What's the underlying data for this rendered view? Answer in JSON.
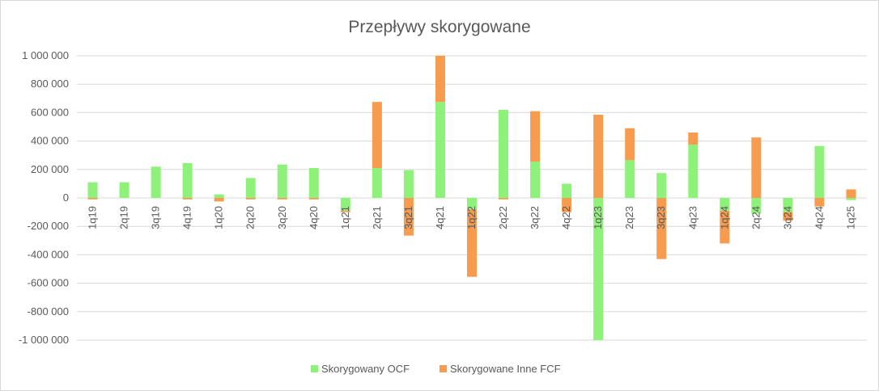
{
  "chart_data": {
    "type": "bar",
    "stacked": true,
    "title": "Przepływy skorygowane",
    "xlabel": "",
    "ylabel": "",
    "ylim": [
      -1000000,
      1000000
    ],
    "ytick_values": [
      -1000000,
      -800000,
      -600000,
      -400000,
      -200000,
      0,
      200000,
      400000,
      600000,
      800000,
      1000000
    ],
    "ytick_labels": [
      "-1 000 000",
      "-800 000",
      "-600 000",
      "-400 000",
      "-200 000",
      "0",
      "200 000",
      "400 000",
      "600 000",
      "800 000",
      "1 000 000"
    ],
    "grid": true,
    "legend_position": "bottom",
    "categories": [
      "1q19",
      "2q19",
      "3q19",
      "4q19",
      "1q20",
      "2q20",
      "3q20",
      "4q20",
      "1q21",
      "2q21",
      "3q21",
      "4q21",
      "1q22",
      "2q22",
      "3q22",
      "4q22",
      "1q23",
      "2q23",
      "3q23",
      "4q23",
      "1q24",
      "2q24",
      "3q24",
      "4q24",
      "1q25"
    ],
    "series": [
      {
        "name": "Skorygowany OCF",
        "color": "#8ef27a",
        "values": [
          110000,
          110000,
          220000,
          245000,
          25000,
          140000,
          235000,
          210000,
          -90000,
          210000,
          195000,
          675000,
          -80000,
          620000,
          255000,
          100000,
          -1000000,
          265000,
          175000,
          375000,
          -90000,
          -110000,
          -100000,
          365000,
          -15000
        ]
      },
      {
        "name": "Skorygowane Inne FCF",
        "color": "#f79b4f",
        "values": [
          -10000,
          0,
          0,
          -10000,
          -25000,
          -10000,
          -10000,
          -10000,
          -10000,
          465000,
          -265000,
          325000,
          -475000,
          -10000,
          355000,
          -100000,
          585000,
          225000,
          -430000,
          85000,
          -230000,
          425000,
          -60000,
          -60000,
          60000
        ]
      }
    ]
  }
}
